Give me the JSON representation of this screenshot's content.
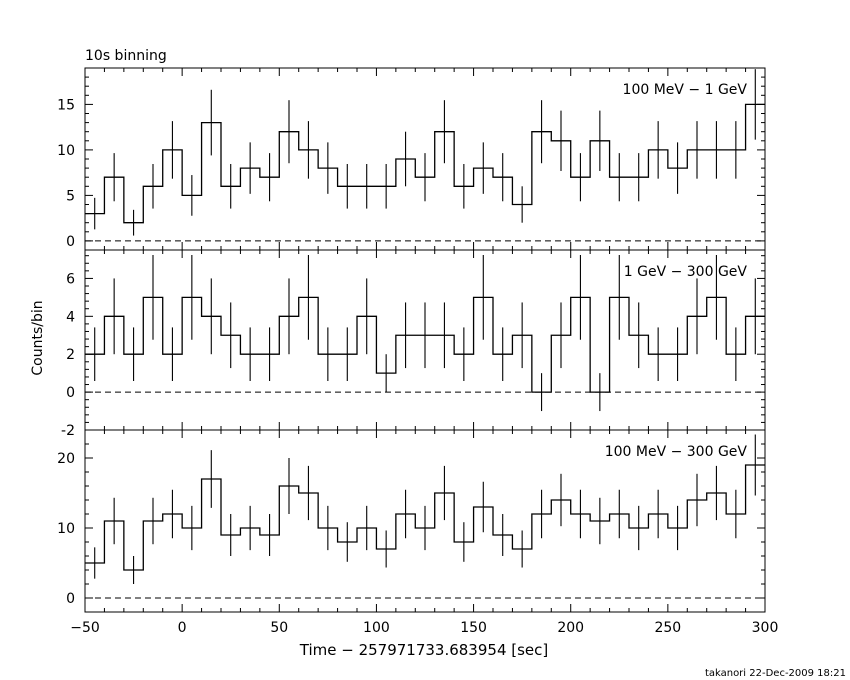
{
  "title": "10s binning",
  "footer": "takanori 22-Dec-2009 18:21",
  "chart_data": {
    "type": "line",
    "style": "step histogram with error bars, three stacked panels sharing x axis",
    "xlabel": "Time − 257971733.683954 [sec]",
    "ylabel": "Counts/bin",
    "xlim": [
      -50,
      300
    ],
    "xticks": [
      -50,
      0,
      50,
      100,
      150,
      200,
      250,
      300
    ],
    "bin_width": 10,
    "bin_starts": [
      -50,
      -40,
      -30,
      -20,
      -10,
      0,
      10,
      20,
      30,
      40,
      50,
      60,
      70,
      80,
      90,
      100,
      110,
      120,
      130,
      140,
      150,
      160,
      170,
      180,
      190,
      200,
      210,
      220,
      230,
      240,
      250,
      260,
      270,
      280,
      290
    ],
    "baseline": 0,
    "panels": [
      {
        "name": "100 MeV − 1 GeV",
        "ylim": [
          -1,
          19
        ],
        "yticks": [
          0,
          5,
          10,
          15
        ],
        "values": [
          3,
          7,
          2,
          6,
          10,
          5,
          13,
          6,
          8,
          7,
          12,
          10,
          8,
          6,
          6,
          6,
          9,
          7,
          12,
          6,
          8,
          7,
          4,
          12,
          11,
          7,
          11,
          7,
          7,
          10,
          8,
          10,
          10,
          10,
          15
        ]
      },
      {
        "name": "1 GeV − 300 GeV",
        "ylim": [
          -2,
          7.5
        ],
        "yticks": [
          -2,
          0,
          2,
          4,
          6
        ],
        "values": [
          2,
          4,
          2,
          5,
          2,
          5,
          4,
          3,
          2,
          2,
          4,
          5,
          2,
          2,
          4,
          1,
          3,
          3,
          3,
          2,
          5,
          2,
          3,
          0,
          3,
          5,
          0,
          5,
          3,
          2,
          2,
          4,
          5,
          2,
          4
        ]
      },
      {
        "name": "100 MeV − 300 GeV",
        "ylim": [
          -2,
          24
        ],
        "yticks": [
          0,
          10,
          20
        ],
        "values": [
          5,
          11,
          4,
          11,
          12,
          10,
          17,
          9,
          10,
          9,
          16,
          15,
          10,
          8,
          10,
          7,
          12,
          10,
          15,
          8,
          13,
          9,
          7,
          12,
          14,
          12,
          11,
          12,
          10,
          12,
          10,
          14,
          15,
          12,
          19
        ]
      }
    ]
  }
}
